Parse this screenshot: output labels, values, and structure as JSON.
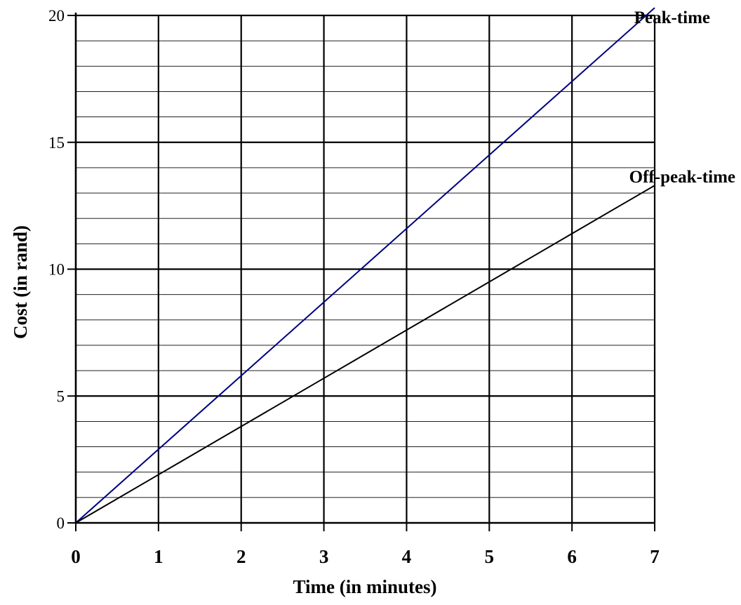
{
  "chart_data": {
    "type": "line",
    "title": "",
    "xlabel": "Time (in minutes)",
    "ylabel": "Cost (in rand)",
    "xlim": [
      0,
      7
    ],
    "ylim": [
      0,
      20
    ],
    "x_ticks": [
      "0",
      "1",
      "2",
      "3",
      "4",
      "5",
      "6",
      "7"
    ],
    "y_ticks": [
      "0",
      "5",
      "10",
      "15",
      "20"
    ],
    "y_minor_step": 1,
    "grid": true,
    "series": [
      {
        "name": "Peak-time",
        "color": "#000080",
        "x": [
          0,
          1,
          2,
          3,
          4,
          5,
          6,
          7
        ],
        "values": [
          0,
          2.9,
          5.8,
          8.7,
          11.6,
          14.5,
          17.4,
          20.3
        ]
      },
      {
        "name": "Off-peak-time",
        "color": "#000000",
        "x": [
          0,
          1,
          2,
          3,
          4,
          5,
          6,
          7
        ],
        "values": [
          0,
          1.9,
          3.8,
          5.7,
          7.6,
          9.5,
          11.4,
          13.3
        ]
      }
    ]
  }
}
